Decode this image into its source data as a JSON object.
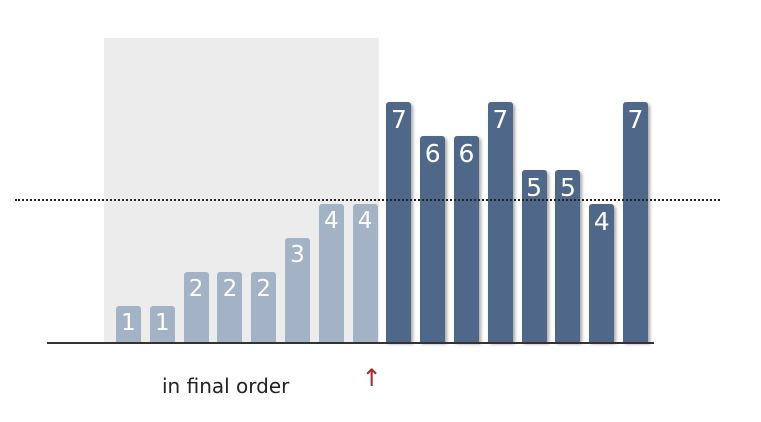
{
  "diagram": {
    "caption": "in final order",
    "pointer_glyph": "↑",
    "threshold_value": 4.2,
    "sorted_count": 8,
    "bars": [
      {
        "value": 1,
        "label": "1",
        "state": "sorted"
      },
      {
        "value": 1,
        "label": "1",
        "state": "sorted"
      },
      {
        "value": 2,
        "label": "2",
        "state": "sorted"
      },
      {
        "value": 2,
        "label": "2",
        "state": "sorted"
      },
      {
        "value": 2,
        "label": "2",
        "state": "sorted"
      },
      {
        "value": 3,
        "label": "3",
        "state": "sorted"
      },
      {
        "value": 4,
        "label": "4",
        "state": "sorted"
      },
      {
        "value": 4,
        "label": "4",
        "state": "sorted"
      },
      {
        "value": 7,
        "label": "7",
        "state": "unsorted"
      },
      {
        "value": 6,
        "label": "6",
        "state": "unsorted"
      },
      {
        "value": 6,
        "label": "6",
        "state": "unsorted"
      },
      {
        "value": 7,
        "label": "7",
        "state": "unsorted"
      },
      {
        "value": 5,
        "label": "5",
        "state": "unsorted"
      },
      {
        "value": 5,
        "label": "5",
        "state": "unsorted"
      },
      {
        "value": 4,
        "label": "4",
        "state": "unsorted"
      },
      {
        "value": 7,
        "label": "7",
        "state": "unsorted"
      }
    ],
    "colors": {
      "sorted_bar": "#a4b2c5",
      "unsorted_bar": "#4f6788",
      "sorted_region": "#ececec",
      "pointer": "#a8282c"
    }
  }
}
